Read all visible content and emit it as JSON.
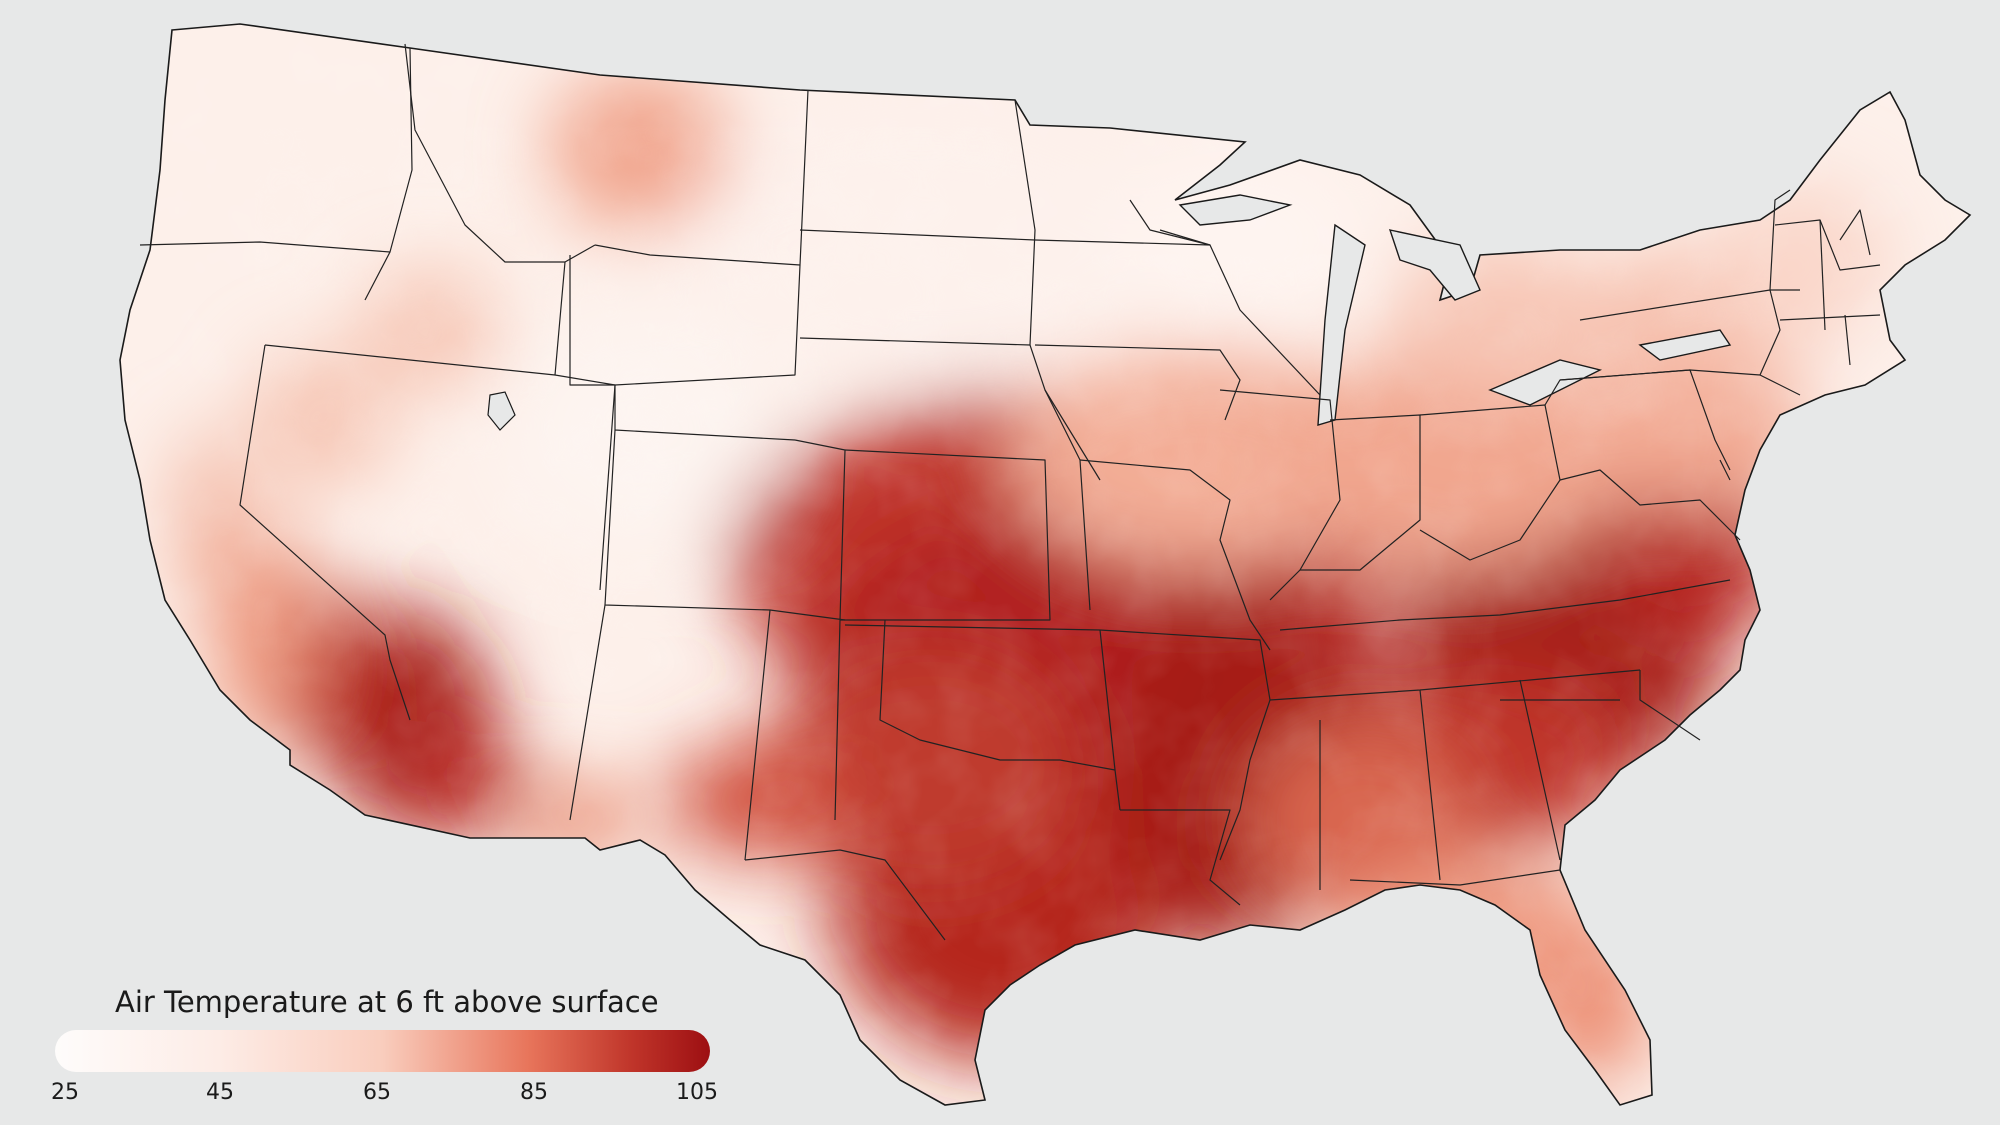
{
  "map": {
    "region": "contiguous-united-states",
    "background_color": "#e7e8e8",
    "border_color": "#1a1a1a",
    "heat_zones_note": "hottest over south-central plains, southeast, and desert southwest"
  },
  "legend": {
    "title": "Air Temperature at 6 ft above surface",
    "ticks": [
      "25",
      "45",
      "65",
      "85",
      "105"
    ],
    "colors": {
      "low": "#fefcfb",
      "mid_low": "#fde7df",
      "mid": "#f7c2ae",
      "mid_high": "#e56e55",
      "high": "#9d0f12"
    }
  }
}
